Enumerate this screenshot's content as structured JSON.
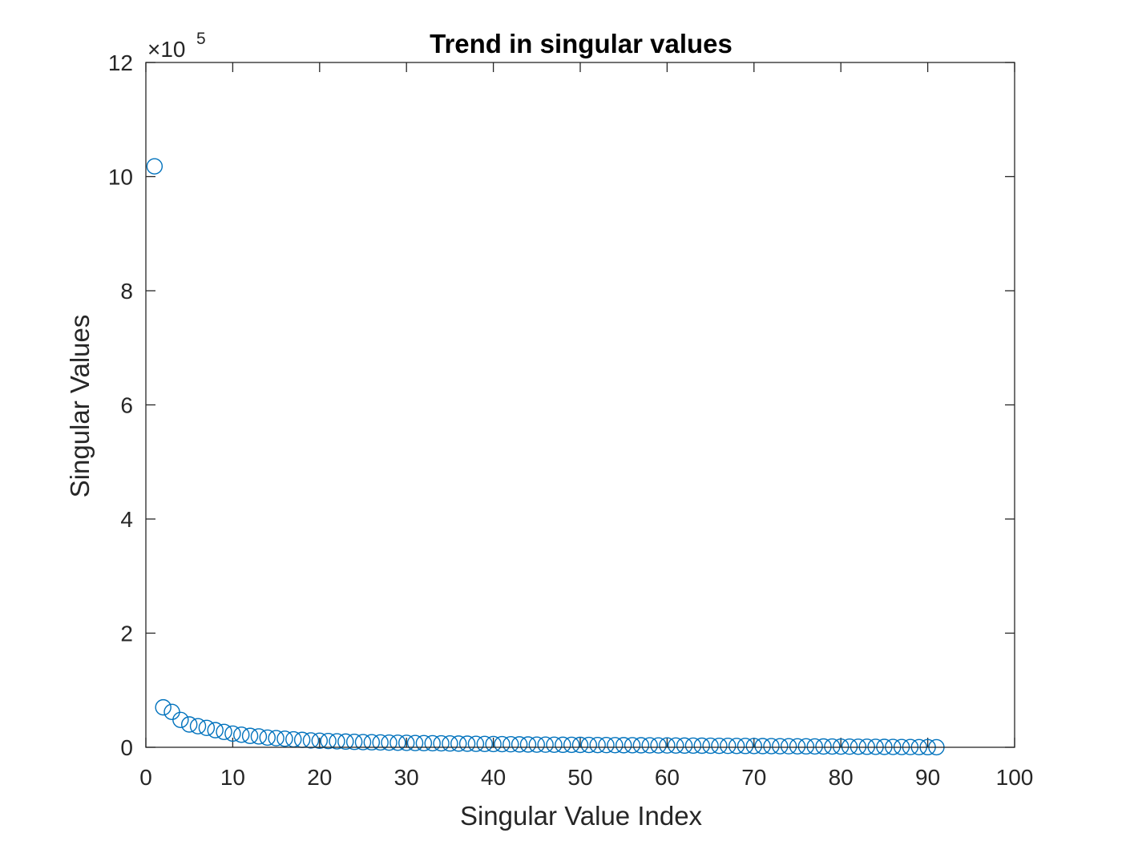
{
  "chart_data": {
    "type": "scatter",
    "title": "Trend in singular values",
    "xlabel": "Singular Value Index",
    "ylabel": "Singular Values",
    "y_exponent_label": "×10",
    "y_exponent": "5",
    "xlim": [
      0,
      100
    ],
    "ylim": [
      0,
      12
    ],
    "x_ticks": [
      "0",
      "10",
      "20",
      "30",
      "40",
      "50",
      "60",
      "70",
      "80",
      "90",
      "100"
    ],
    "y_ticks": [
      "0",
      "2",
      "4",
      "6",
      "8",
      "10",
      "12"
    ],
    "grid": false,
    "marker": "circle-open",
    "marker_color": "#0072BD",
    "series": [
      {
        "x": [
          1,
          2,
          3,
          4,
          5,
          6,
          7,
          8,
          9,
          10,
          11,
          12,
          13,
          14,
          15,
          16,
          17,
          18,
          19,
          20,
          21,
          22,
          23,
          24,
          25,
          26,
          27,
          28,
          29,
          30,
          31,
          32,
          33,
          34,
          35,
          36,
          37,
          38,
          39,
          40,
          41,
          42,
          43,
          44,
          45,
          46,
          47,
          48,
          49,
          50,
          51,
          52,
          53,
          54,
          55,
          56,
          57,
          58,
          59,
          60,
          61,
          62,
          63,
          64,
          65,
          66,
          67,
          68,
          69,
          70,
          71,
          72,
          73,
          74,
          75,
          76,
          77,
          78,
          79,
          80,
          81,
          82,
          83,
          84,
          85,
          86,
          87,
          88,
          89,
          90,
          91
        ],
        "y": [
          10.18,
          0.7,
          0.62,
          0.48,
          0.4,
          0.37,
          0.34,
          0.3,
          0.27,
          0.24,
          0.22,
          0.2,
          0.19,
          0.17,
          0.16,
          0.15,
          0.14,
          0.13,
          0.12,
          0.115,
          0.11,
          0.105,
          0.1,
          0.095,
          0.09,
          0.088,
          0.085,
          0.082,
          0.08,
          0.078,
          0.075,
          0.073,
          0.071,
          0.069,
          0.067,
          0.065,
          0.063,
          0.061,
          0.059,
          0.057,
          0.055,
          0.053,
          0.051,
          0.049,
          0.047,
          0.046,
          0.045,
          0.044,
          0.043,
          0.042,
          0.041,
          0.04,
          0.039,
          0.038,
          0.037,
          0.036,
          0.035,
          0.034,
          0.033,
          0.032,
          0.031,
          0.03,
          0.029,
          0.028,
          0.027,
          0.026,
          0.025,
          0.024,
          0.023,
          0.022,
          0.021,
          0.02,
          0.019,
          0.018,
          0.017,
          0.016,
          0.015,
          0.014,
          0.013,
          0.012,
          0.011,
          0.01,
          0.009,
          0.008,
          0.007,
          0.006,
          0.005,
          0.004,
          0.003,
          0.002,
          0.001
        ]
      }
    ]
  }
}
